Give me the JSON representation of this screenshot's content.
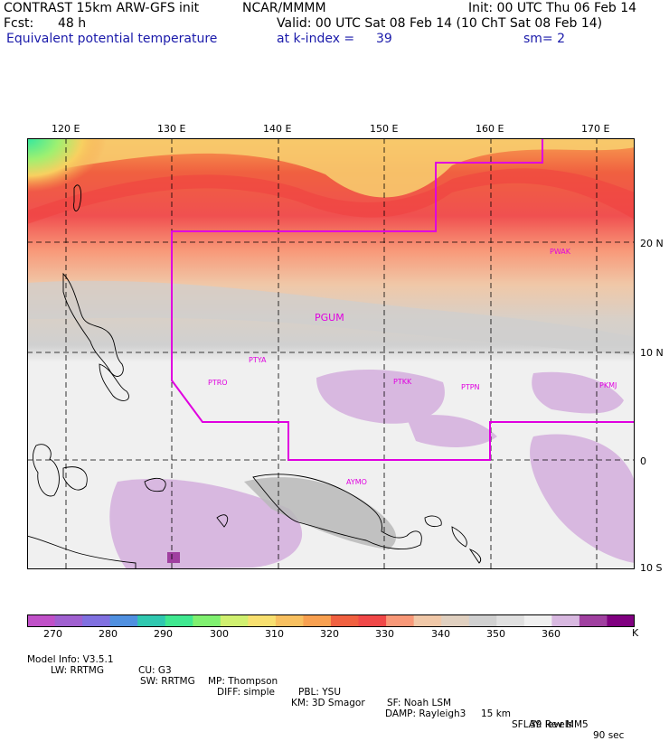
{
  "header": {
    "model": "CONTRAST 15km ARW-GFS init",
    "org": "NCAR/MMMM",
    "fcst_label": "Fcst:",
    "fcst_value": "48 h",
    "field": "Equivalent potential temperature",
    "init": "Init: 00 UTC Thu 06 Feb 14",
    "valid": "Valid: 00 UTC Sat 08 Feb 14 (10 ChT Sat 08 Feb 14)",
    "level": "at k-index =",
    "level_value": "39",
    "smooth": "sm= 2"
  },
  "map": {
    "lon_labels": [
      "120 E",
      "130 E",
      "140 E",
      "150 E",
      "160 E",
      "170 E"
    ],
    "lat_labels": [
      "20 N",
      "10 N",
      "0",
      "10 S"
    ],
    "stations": [
      "PGUM",
      "PWAK",
      "PTYA",
      "PTRO",
      "PTKK",
      "PTPN",
      "PKMJ",
      "AYMO"
    ],
    "border_color": "#e000e0"
  },
  "colorbar": {
    "labels": [
      "270",
      "280",
      "290",
      "300",
      "310",
      "320",
      "330",
      "340",
      "350",
      "360"
    ],
    "unit": "K",
    "colors": [
      "#c050c8",
      "#a060d0",
      "#8070e0",
      "#5090e0",
      "#30c8b0",
      "#40e890",
      "#80f070",
      "#d0f070",
      "#f8e070",
      "#f8c060",
      "#f8a050",
      "#f06040",
      "#f04848",
      "#f89878",
      "#f0c8a8",
      "#e0d0c0",
      "#d0d0d0",
      "#e0e0e0",
      "#f0f0f0",
      "#d8b8e0",
      "#a040a0",
      "#800080"
    ]
  },
  "info": {
    "line1": [
      "Model Info: V3.5.1",
      "CU: G3",
      "MP: Thompson",
      "PBL: YSU",
      "SF: Noah LSM",
      "15 km",
      "39 levels",
      "90 sec"
    ],
    "line2": [
      "LW: RRTMG",
      "SW: RRTMG",
      "DIFF: simple",
      "KM: 3D Smagor",
      "DAMP: Rayleigh3",
      "SFLAY: Rev MM5"
    ]
  }
}
